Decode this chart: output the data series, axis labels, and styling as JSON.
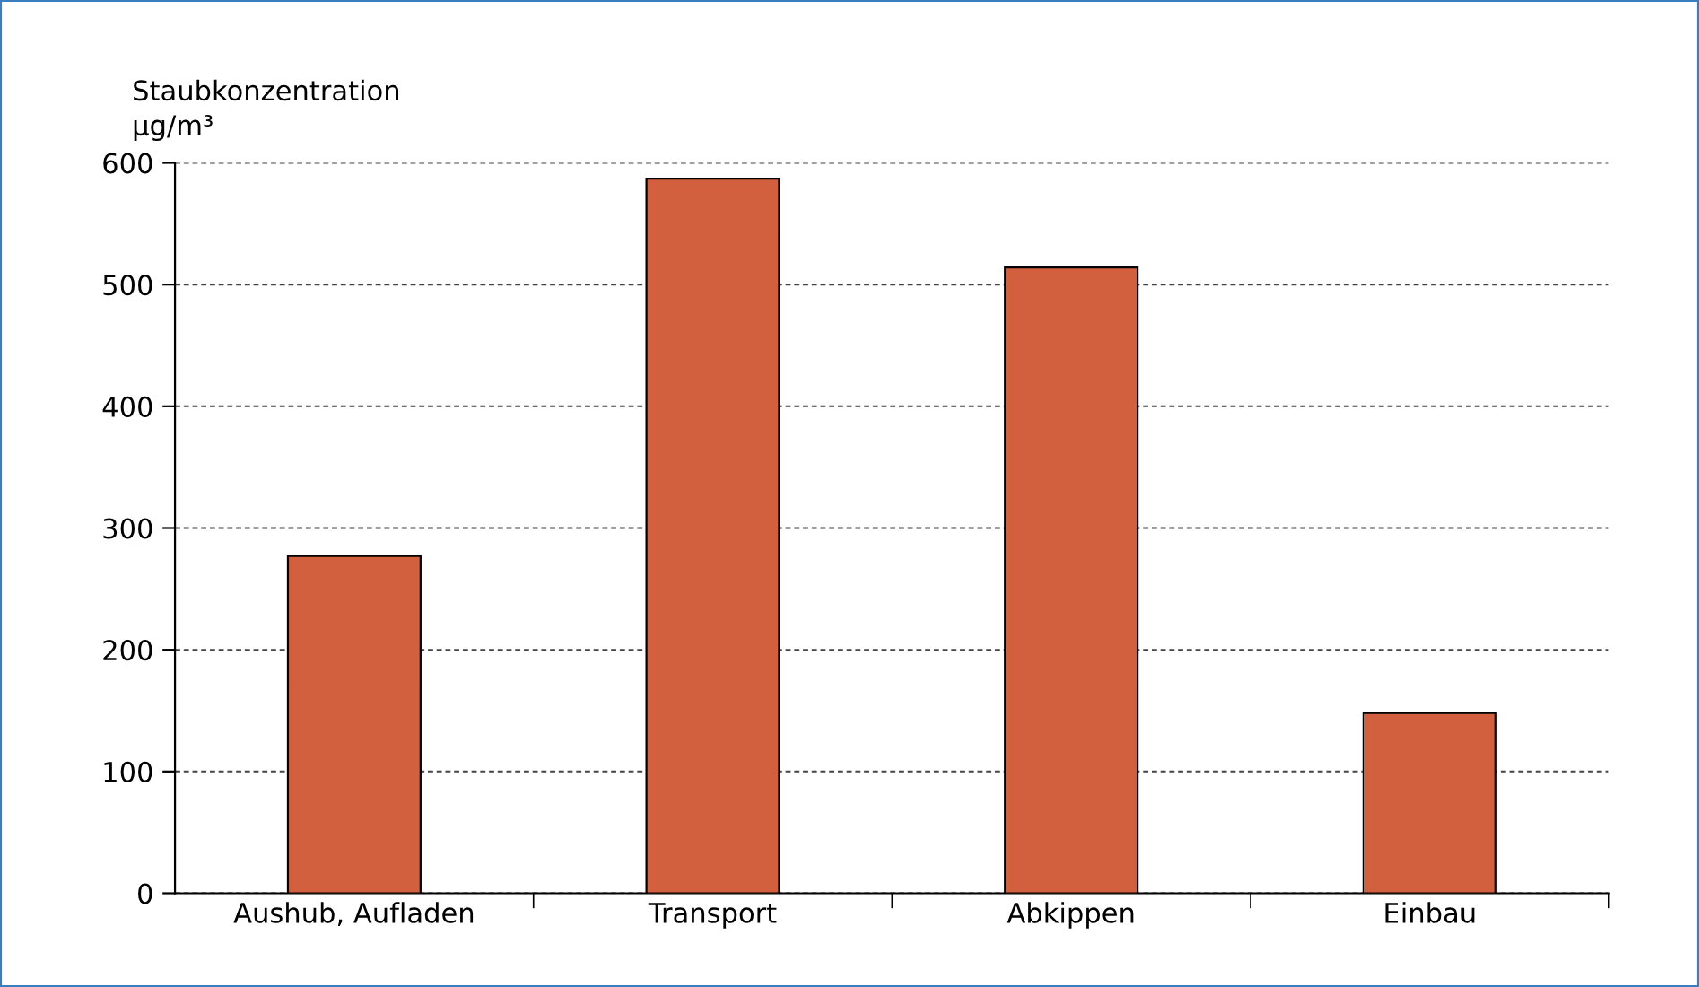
{
  "chart_data": {
    "type": "bar",
    "ylabel": "Staubkonzentration\nµg/m³",
    "categories": [
      "Aushub, Aufladen",
      "Transport",
      "Abkippen",
      "Einbau"
    ],
    "values": [
      277,
      587,
      514,
      148
    ],
    "color": "#d2603f",
    "ylim": [
      0,
      600
    ],
    "yticks": [
      0,
      100,
      200,
      300,
      400,
      500,
      600
    ],
    "grid": "y",
    "legend": false
  }
}
